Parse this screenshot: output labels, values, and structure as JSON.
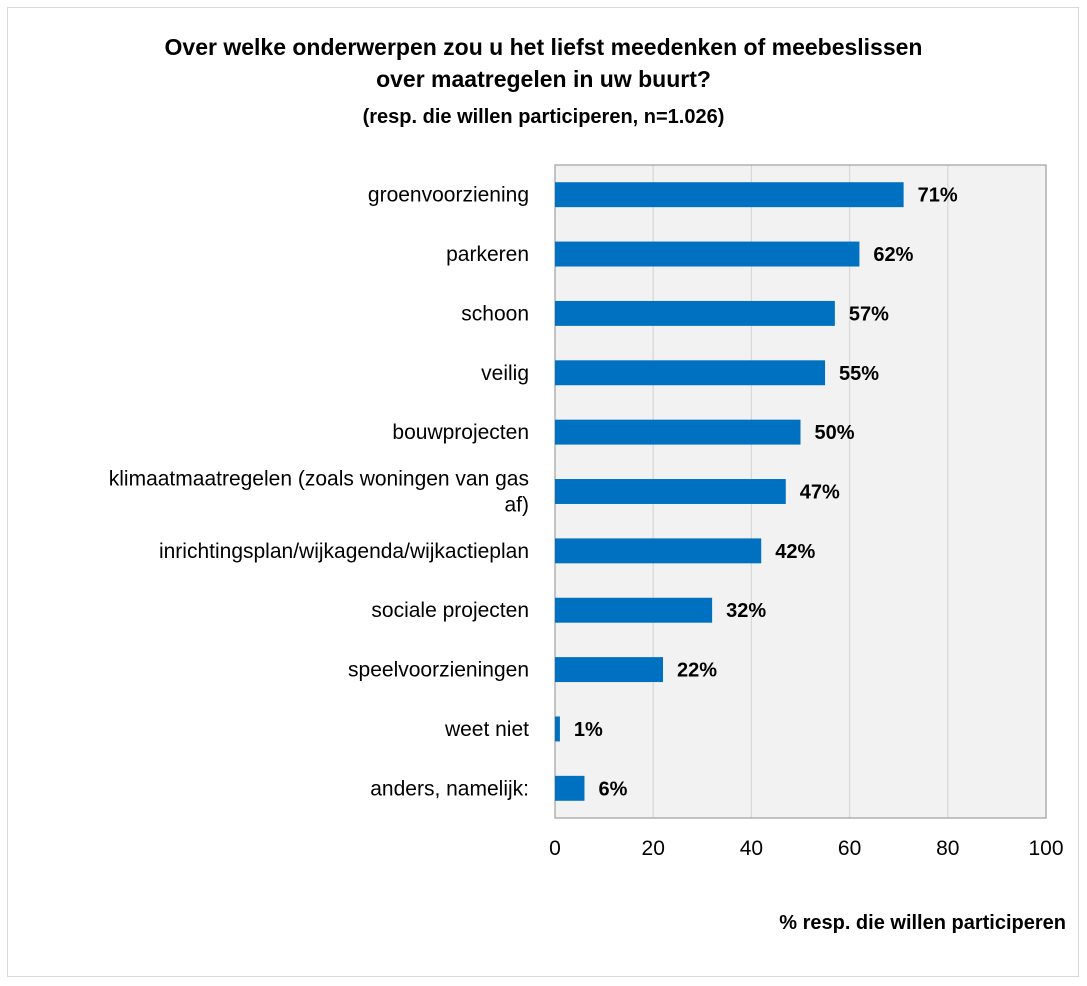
{
  "chart_data": {
    "type": "bar",
    "orientation": "horizontal",
    "title_lines": [
      "Over welke onderwerpen zou u het liefst meedenken of meebeslissen",
      "over maatregelen in uw buurt?"
    ],
    "subtitle": "(resp. die willen participeren, n=1.026)",
    "categories": [
      [
        "groenvoorziening"
      ],
      [
        "parkeren"
      ],
      [
        "schoon"
      ],
      [
        "veilig"
      ],
      [
        "bouwprojecten"
      ],
      [
        "klimaatmaatregelen (zoals woningen van gas",
        "af)"
      ],
      [
        "inrichtingsplan/wijkagenda/wijkactieplan"
      ],
      [
        "sociale projecten"
      ],
      [
        "speelvoorzieningen"
      ],
      [
        "weet niet"
      ],
      [
        "anders, namelijk:"
      ]
    ],
    "values": [
      71,
      62,
      57,
      55,
      50,
      47,
      42,
      32,
      22,
      1,
      6
    ],
    "data_labels": [
      "71%",
      "62%",
      "57%",
      "55%",
      "50%",
      "47%",
      "42%",
      "32%",
      "22%",
      "1%",
      "6%"
    ],
    "xlabel": "% resp. die willen participeren",
    "xlim": [
      0,
      100
    ],
    "xticks": [
      "0",
      "20",
      "40",
      "60",
      "80",
      "100"
    ],
    "grid": true,
    "colors": {
      "bar": "#0070c0",
      "plot_background": "#f2f2f2",
      "gridline": "#d9d9d9"
    }
  }
}
